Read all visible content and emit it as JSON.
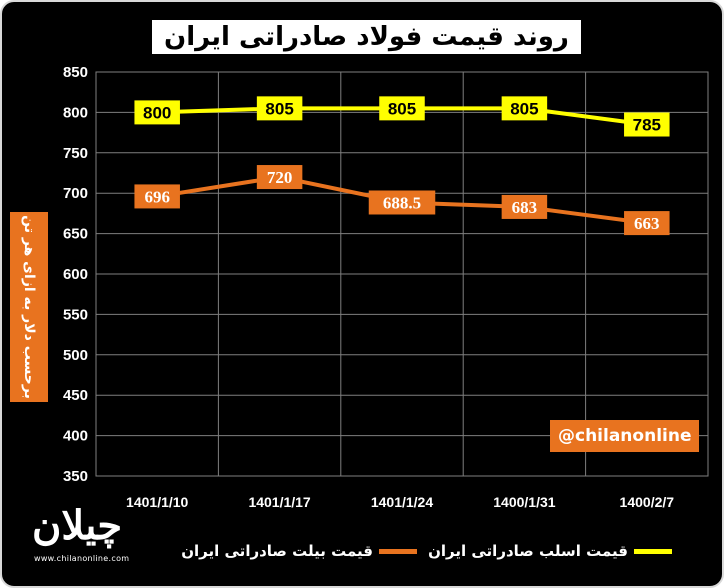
{
  "chart_data": {
    "type": "line",
    "title": "روند قیمت فولاد صادراتی ایران",
    "ylabel": "برحسب دلار به ازای هر تن",
    "categories": [
      "1401/1/10",
      "1401/1/17",
      "1401/1/24",
      "1400/1/31",
      "1400/2/7"
    ],
    "ylim": [
      350,
      850
    ],
    "yticks": [
      350,
      400,
      450,
      500,
      550,
      600,
      650,
      700,
      750,
      800,
      850
    ],
    "grid": true,
    "legend_position": "bottom",
    "series": [
      {
        "name": "قیمت اسلب صادراتی ایران",
        "color": "#ffff00",
        "label_bg": "#ffff00",
        "label_fg": "#000000",
        "values": [
          800,
          805,
          805,
          805,
          785
        ],
        "labels": [
          "800",
          "805",
          "805",
          "805",
          "785"
        ]
      },
      {
        "name": "قیمت بیلت صادراتی ایران",
        "color": "#e8731f",
        "label_bg": "#e8731f",
        "label_fg": "#ffffff",
        "values": [
          696,
          720,
          688.5,
          683,
          663
        ],
        "labels": [
          "696",
          "720",
          "688.5",
          "683",
          "663"
        ]
      }
    ]
  },
  "watermark": "@chilanonline",
  "logo": {
    "text": "چیلان",
    "url": "www.chilanonline.com"
  }
}
